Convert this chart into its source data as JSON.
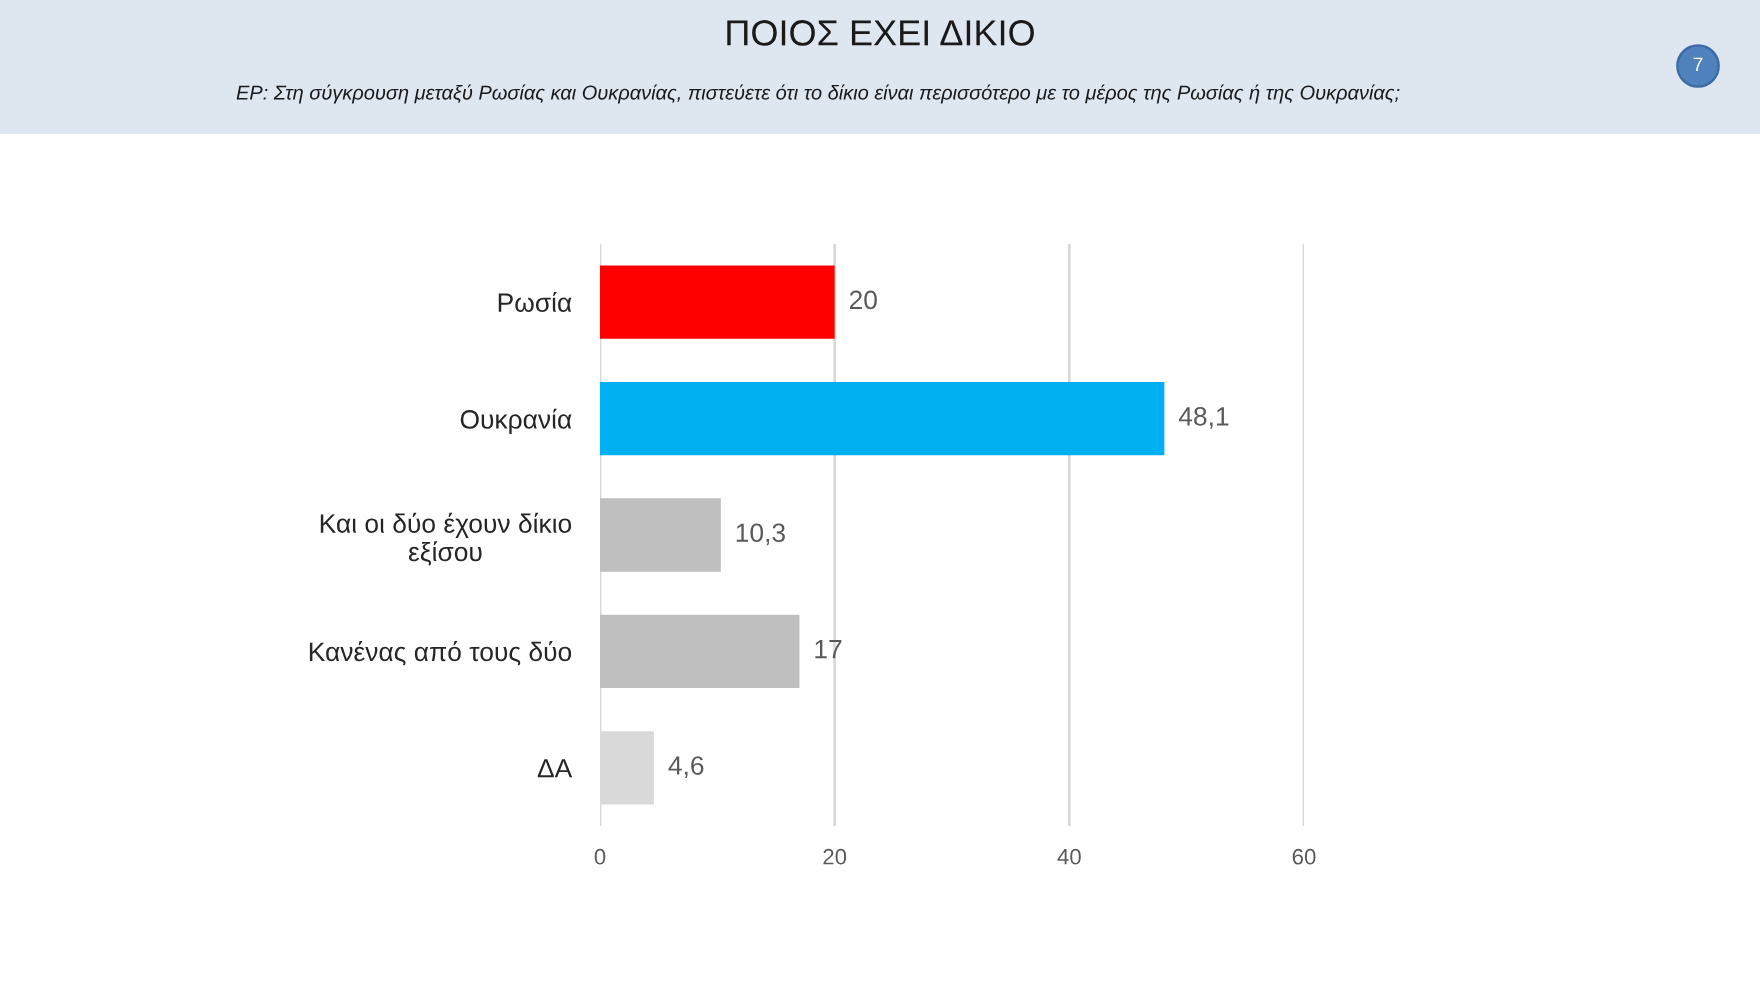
{
  "chart_data": {
    "type": "bar",
    "orientation": "horizontal",
    "title": "ΠΟΙΟΣ ΕΧΕΙ ΔΙΚΙΟ",
    "subtitle": "ΕΡ: Στη σύγκρουση μεταξύ Ρωσίας και Ουκρανίας, πιστεύετε ότι το δίκιο είναι περισσότερο με το μέρος της Ρωσίας ή της Ουκρανίας;",
    "categories": [
      "Ρωσία",
      "Ουκρανία",
      "Και οι δύο έχουν δίκιο\nεξίσου",
      "Κανένας από τους δύο",
      "ΔΑ"
    ],
    "values": [
      20,
      48.1,
      10.3,
      17,
      4.6
    ],
    "colors": [
      "#ff0000",
      "#00b0f0",
      "#bfbfbf",
      "#bfbfbf",
      "#d9d9d9"
    ],
    "value_labels": [
      "20",
      "48,1",
      "10,3",
      "17",
      "4,6"
    ],
    "xlim": [
      0,
      60
    ],
    "xticks": [
      0,
      20,
      40,
      60
    ],
    "grid": "x",
    "legend": false,
    "annotations": [
      "7"
    ]
  }
}
